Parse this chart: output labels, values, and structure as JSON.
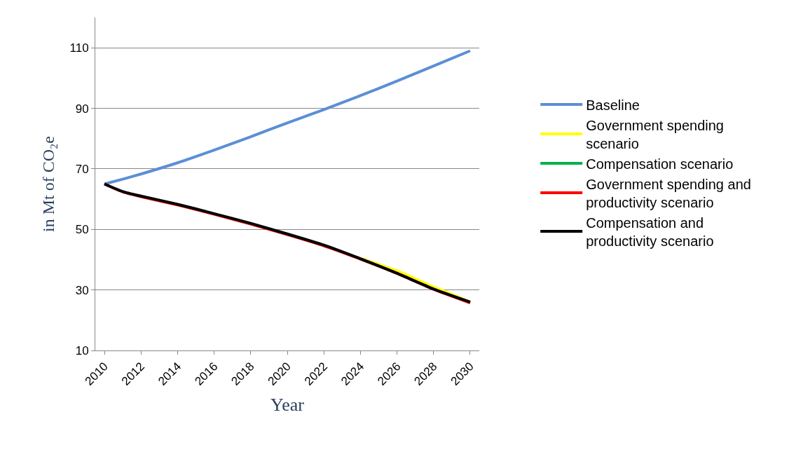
{
  "chart_data": {
    "type": "line",
    "xlabel": "Year",
    "ylabel": "in Mt of CO₂e",
    "x": [
      2010,
      2011,
      2012,
      2014,
      2016,
      2018,
      2020,
      2022,
      2024,
      2026,
      2028,
      2030
    ],
    "xlim": [
      2009.5,
      2030.5
    ],
    "xticks": [
      2010,
      2012,
      2014,
      2016,
      2018,
      2020,
      2022,
      2024,
      2026,
      2028,
      2030
    ],
    "ylim": [
      10,
      120
    ],
    "yticks": [
      10,
      30,
      50,
      70,
      90,
      110
    ],
    "grid": "y",
    "legend": "right",
    "marker": "none",
    "line_style": "solid",
    "series": [
      {
        "name": "Baseline",
        "color": "#5b8fd6",
        "values": [
          65,
          66.6,
          68.3,
          72,
          76.2,
          80.6,
          85.2,
          89.6,
          94.2,
          99,
          104,
          109
        ]
      },
      {
        "name": "Government spending scenario",
        "color": "#ffff00",
        "values": [
          null,
          null,
          null,
          null,
          null,
          null,
          null,
          null,
          40.5,
          36.3,
          31,
          26
        ]
      },
      {
        "name": "Compensation scenario",
        "color": "#00b050",
        "values": [
          null,
          null,
          null,
          null,
          null,
          null,
          null,
          null,
          null,
          null,
          null,
          null
        ]
      },
      {
        "name": "Government spending and productivity scenario",
        "color": "#ff0000",
        "values": [
          65,
          62.4,
          60.8,
          58.1,
          55,
          51.8,
          48.3,
          44.6,
          40.2,
          35.5,
          30.2,
          25.7
        ]
      },
      {
        "name": "Compensation and productivity scenario",
        "color": "#000000",
        "values": [
          65,
          62.5,
          61,
          58.3,
          55.2,
          52,
          48.5,
          44.8,
          40.3,
          35.5,
          30.3,
          26
        ]
      }
    ]
  }
}
